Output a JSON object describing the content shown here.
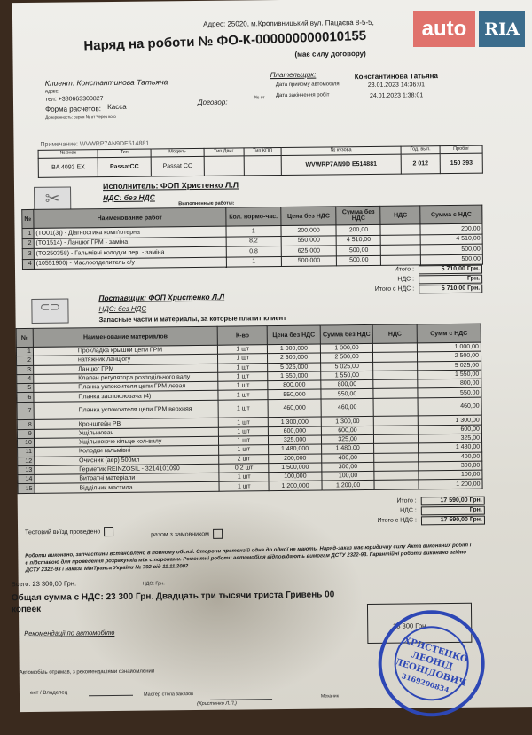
{
  "header": {
    "address": "Адрес: 25020, м.Кропивницький вул. Пацаєва 8-5-5,",
    "title": "Наряд на роботи №  ФО-К-000000000010155",
    "subtitle": "(має силу договору)"
  },
  "watermark": {
    "auto": "auto",
    "ria": "RIA",
    "colors": {
      "auto": "#e0726c",
      "ria": "#3b6c8c"
    }
  },
  "client": {
    "label": "Клиент: Константинова Татьяна",
    "address_label": "Адрес:",
    "phone": "тел: +380663300827",
    "payment": "Форма расчетов:",
    "payment_value": "Касса",
    "proxy": "Доверенность: серия  №  от  Через кого",
    "contract": "Договор:",
    "contract_no": "№  от"
  },
  "payer": {
    "label": "Плательщик:",
    "name": "Константинова Татьяна",
    "accept_label": "Дата прийому автомобіля",
    "accept_date": "23.01.2023 14:36:01",
    "end_label": "Дата закінчення робіт",
    "end_date": "24.01.2023 1:38:01"
  },
  "vehicle": {
    "note": "Примечание: WVWRP7AN9DE514881",
    "headers": [
      "№ знак",
      "Тип",
      "Модель",
      "Тип Двиг.",
      "Тип КПП",
      "№ кузова",
      "Год. вып.",
      "Пробег"
    ],
    "values": [
      "BA 4093 EX",
      "PassatCC",
      "Passat CC",
      "",
      "",
      "WVWRP7AN9D E514881",
      "2 012",
      "150 393"
    ]
  },
  "works": {
    "executor": "Исполнитель:  ФОП Христенко Л.Л",
    "vat": "НДС:  без НДС",
    "caption": "Выполненные работы:",
    "headers": [
      "№",
      "Наименование работ",
      "Кол. нормо-час.",
      "Цена без НДС",
      "Сумма без НДС",
      "НДС",
      "Сумма с НДС"
    ],
    "rows": [
      [
        "1",
        "(ТО01(3)) - Діагностика комп'ютерна",
        "1",
        "200,000",
        "200,00",
        "",
        "200,00"
      ],
      [
        "2",
        "(ТО1514) - Ланцюг ГРМ - заміна",
        "8,2",
        "550,000",
        "4 510,00",
        "",
        "4 510,00"
      ],
      [
        "3",
        "(ТО250358) - Гальмівні колодки пер. - заміна",
        "0,8",
        "625,000",
        "500,00",
        "",
        "500,00"
      ],
      [
        "4",
        "(10551900) - Маслоотделитель с/у",
        "1",
        "500,000",
        "500,00",
        "",
        "500,00"
      ]
    ],
    "total_label": "Итого :",
    "total": "5 710,00 Грн.",
    "vat_label": "НДС :",
    "vat_value": "Грн.",
    "total_vat_label": "Итого с НДС :",
    "total_vat": "5 710,00 Грн."
  },
  "materials": {
    "supplier": "Поставщик:  ФОП Христенко Л.Л",
    "vat": "НДС:  без НДС",
    "caption": "Запасные части и материалы, за которые платит клиент",
    "headers": [
      "№",
      "Наименование материалов",
      "К-во",
      "Цена без НДС",
      "Сумма без НДС",
      "НДС",
      "Сумм с НДС"
    ],
    "rows": [
      [
        "1",
        "Прокладка крышки цепи ГРМ",
        "1 шт",
        "1 000,000",
        "1 000,00",
        "",
        "1 000,00"
      ],
      [
        "2",
        "натяжник ланцюгу",
        "1 шт",
        "2 500,000",
        "2 500,00",
        "",
        "2 500,00"
      ],
      [
        "3",
        "Ланцюг ГРМ",
        "1 шт",
        "5 025,000",
        "5 025,00",
        "",
        "5 025,00"
      ],
      [
        "4",
        "Клапан регулятора розподільчого валу",
        "1 шт",
        "1 550,000",
        "1 550,00",
        "",
        "1 550,00"
      ],
      [
        "5",
        "Планка успокоителя цепи ГРМ левая",
        "1 шт",
        "800,000",
        "800,00",
        "",
        "800,00"
      ],
      [
        "6",
        "Планка заспокоювача (4)",
        "1 шт",
        "550,000",
        "550,00",
        "",
        "550,00"
      ],
      [
        "7",
        "Планка успокоителя цепи ГРМ верхняя",
        "1 шт",
        "460,000",
        "460,00",
        "",
        "460,00"
      ],
      [
        "8",
        "Кронштейн РВ",
        "1 шт",
        "1 300,000",
        "1 300,00",
        "",
        "1 300,00"
      ],
      [
        "9",
        "Ущільнювач",
        "1 шт",
        "600,000",
        "600,00",
        "",
        "600,00"
      ],
      [
        "10",
        "Ущільнююче кільце кол-валу",
        "1 шт",
        "325,000",
        "325,00",
        "",
        "325,00"
      ],
      [
        "11",
        "Колодки гальмівні",
        "1 шт",
        "1 480,000",
        "1 480,00",
        "",
        "1 480,00"
      ],
      [
        "12",
        "Очисник (аер)  500мл",
        "2 шт",
        "200,000",
        "400,00",
        "",
        "400,00"
      ],
      [
        "13",
        "Герметик REINZOSIL - 3214101090",
        "0,2 шт",
        "1 500,000",
        "300,00",
        "",
        "300,00"
      ],
      [
        "14",
        "Витратні матеріали",
        "1 шт",
        "100,000",
        "100,00",
        "",
        "100,00"
      ],
      [
        "15",
        "Відділник мастила",
        "1 шт",
        "1 200,000",
        "1 200,00",
        "",
        "1 200,00"
      ]
    ],
    "total_label": "Итого :",
    "total": "17 590,00 Грн.",
    "vat_label": "НДС :",
    "vat_value": "Грн.",
    "total_vat_label": "Итого с НДС :",
    "total_vat": "17 590,00 Грн."
  },
  "footer": {
    "test_drive": "Тестовий виїзд проведено",
    "with_customer": "разом з замовником",
    "legal": "Роботи виконано, запчастини встановлено в повному обсязі. Сторони претензій одна до одної не мають. Наряд-заказ має юридичну силу Акта виконаних робіт і є підставою для проведення розрахунків між сторонами. Ремонтні роботи автомобіля відповідають вимогам ДСТУ 2322-93. Гарантійні роботи виконано згідно ДСТУ 2322-93 і наказа МінТранса України № 792 від 11.11.2002",
    "total_all": "Всего: 23 300,00 Грн.",
    "vat_line": "НДС:  Грн.",
    "grand_total": "Общая сумма с НДС:   23 300 Грн.  Двадцать три тысячи триста Гривень 00 копеек",
    "box_amount": "23 300 Грн.",
    "recommendations": "Рекомендації по автомобілю",
    "received": "Автомобіль отримав, з рекомендаціями ознайомлений",
    "owner": "ент  /  Владелец",
    "master": "Мастер стола заказов",
    "master_name": "(Христенко Л.П.)",
    "mechanic": "Механик"
  },
  "stamp": {
    "text": "ФІЗИЧНА ОСОБА-ПІДПРИЄМЕЦЬ ХРИСТЕНКО ЛЕОНІД ЛЕОНІДОВИЧ 3169200834 УКРАЇНА м.КРОПИВНИЦЬКИЙ",
    "line1": "ХРИСТЕНКО",
    "line2": "ЛЕОНІД",
    "line3": "ЛЕОНІДОВИЧ",
    "code": "3169200834",
    "color": "#2d47b5"
  }
}
